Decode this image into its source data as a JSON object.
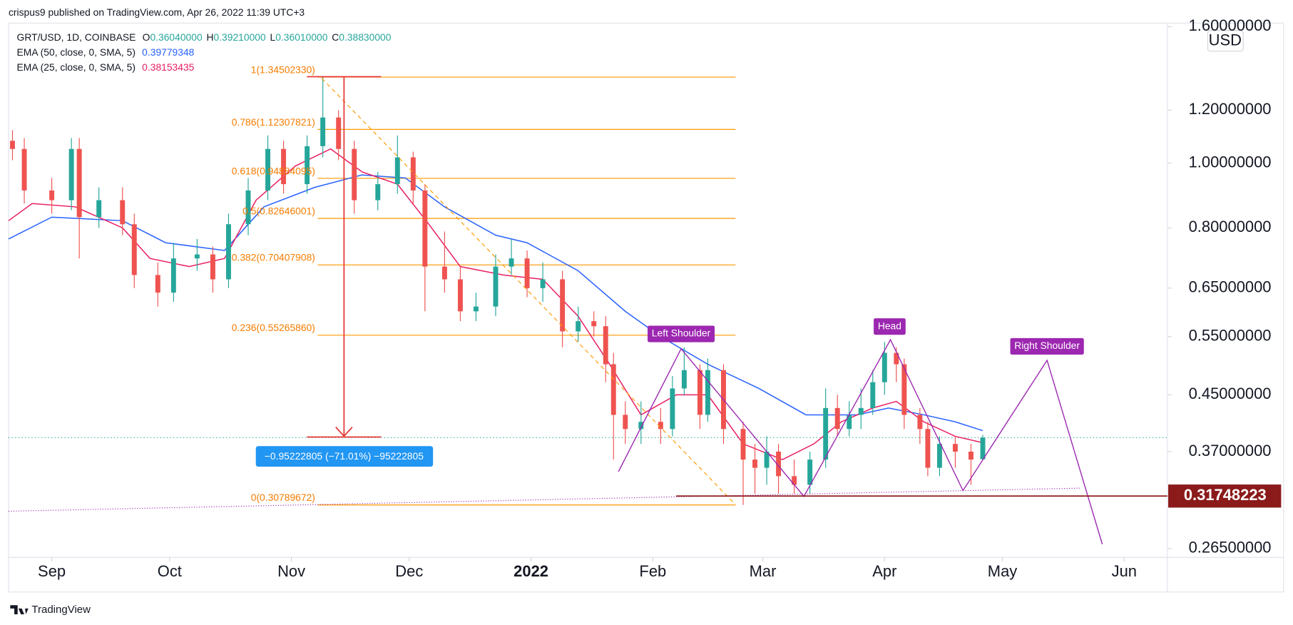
{
  "header": {
    "published": "crispus9 published on TradingView.com, Apr 26, 2022 11:39 UTC+3",
    "footer": "TradingView",
    "currency": "USD"
  },
  "chart_data": {
    "type": "candlestick",
    "log_scale": true,
    "legend": {
      "symbol": "GRT/USD, 1D, COINBASE",
      "ohlc": [
        {
          "key": "O",
          "value": "0.36040000"
        },
        {
          "key": "H",
          "value": "0.39210000"
        },
        {
          "key": "L",
          "value": "0.36010000"
        },
        {
          "key": "C",
          "value": "0.38830000"
        }
      ]
    },
    "up_color": "#26a69a",
    "down_color": "#ef5350",
    "xlim": [
      -11,
      284
    ],
    "xticks": [
      {
        "value": 0,
        "label": "Sep"
      },
      {
        "value": 30,
        "label": "Oct"
      },
      {
        "value": 61,
        "label": "Nov"
      },
      {
        "value": 91,
        "label": "Dec"
      },
      {
        "value": 122,
        "label": "2022"
      },
      {
        "value": 153,
        "label": "Feb"
      },
      {
        "value": 181,
        "label": "Mar"
      },
      {
        "value": 212,
        "label": "Apr"
      },
      {
        "value": 242,
        "label": "May"
      },
      {
        "value": 273,
        "label": "Jun"
      }
    ],
    "ylim": [
      0.257,
      1.62
    ],
    "yticks": [
      {
        "value": 1.6,
        "label": "1.60000000"
      },
      {
        "value": 1.2,
        "label": "1.20000000"
      },
      {
        "value": 1,
        "label": "1.00000000"
      },
      {
        "value": 0.8,
        "label": "0.80000000"
      },
      {
        "value": 0.65,
        "label": "0.65000000"
      },
      {
        "value": 0.55,
        "label": "0.55000000"
      },
      {
        "value": 0.45,
        "label": "0.45000000"
      },
      {
        "value": 0.37,
        "label": "0.37000000"
      },
      {
        "value": 0.265,
        "label": "0.26500000"
      }
    ],
    "candles": {
      "x": [
        -10,
        -7,
        0,
        5,
        7,
        12,
        18,
        21,
        27,
        31,
        37,
        41,
        45,
        50,
        55,
        59,
        65,
        69,
        73,
        77,
        83,
        88,
        92,
        95,
        100,
        104,
        108,
        113,
        117,
        121,
        125,
        130,
        134,
        138,
        141,
        143,
        146,
        150,
        155,
        158,
        161,
        165,
        167,
        171,
        176,
        179,
        182,
        185,
        189,
        193,
        197,
        200,
        203,
        206,
        209,
        212,
        215,
        217,
        221,
        223,
        226,
        230,
        234,
        237
      ],
      "open": [
        1.08,
        1.05,
        0.91,
        0.88,
        1.05,
        0.83,
        0.88,
        0.81,
        0.68,
        0.64,
        0.72,
        0.73,
        0.67,
        0.81,
        0.91,
        1.05,
        0.93,
        1.06,
        1.17,
        1.05,
        0.88,
        0.93,
        1.02,
        0.91,
        0.7,
        0.67,
        0.6,
        0.61,
        0.7,
        0.72,
        0.65,
        0.67,
        0.56,
        0.58,
        0.57,
        0.5,
        0.42,
        0.4,
        0.41,
        0.4,
        0.46,
        0.49,
        0.42,
        0.49,
        0.4,
        0.36,
        0.35,
        0.37,
        0.34,
        0.33,
        0.36,
        0.43,
        0.4,
        0.42,
        0.43,
        0.47,
        0.52,
        0.5,
        0.42,
        0.4,
        0.35,
        0.38,
        0.37,
        0.3604
      ],
      "high": [
        1.12,
        1.09,
        0.95,
        1.09,
        1.09,
        0.92,
        0.92,
        0.84,
        0.71,
        0.76,
        0.77,
        0.75,
        0.84,
        0.95,
        1.1,
        1.08,
        1.1,
        1.345,
        1.2,
        1.08,
        0.97,
        1.1,
        1.04,
        0.93,
        0.79,
        0.7,
        0.64,
        0.73,
        0.77,
        0.74,
        0.71,
        0.69,
        0.61,
        0.6,
        0.59,
        0.52,
        0.44,
        0.44,
        0.43,
        0.48,
        0.53,
        0.5,
        0.51,
        0.5,
        0.41,
        0.38,
        0.39,
        0.38,
        0.36,
        0.37,
        0.46,
        0.45,
        0.44,
        0.46,
        0.49,
        0.54,
        0.53,
        0.51,
        0.43,
        0.41,
        0.39,
        0.39,
        0.38,
        0.3921
      ],
      "low": [
        1.01,
        0.87,
        0.84,
        0.85,
        0.72,
        0.8,
        0.78,
        0.65,
        0.61,
        0.62,
        0.69,
        0.64,
        0.65,
        0.78,
        0.88,
        0.9,
        0.9,
        1.02,
        1.01,
        0.84,
        0.85,
        0.9,
        0.87,
        0.6,
        0.64,
        0.58,
        0.58,
        0.59,
        0.68,
        0.63,
        0.62,
        0.53,
        0.54,
        0.55,
        0.47,
        0.36,
        0.38,
        0.38,
        0.38,
        0.39,
        0.45,
        0.4,
        0.41,
        0.38,
        0.3079,
        0.32,
        0.33,
        0.32,
        0.32,
        0.32,
        0.35,
        0.39,
        0.39,
        0.4,
        0.42,
        0.45,
        0.47,
        0.4,
        0.38,
        0.34,
        0.34,
        0.35,
        0.33,
        0.3601
      ],
      "close": [
        1.05,
        0.91,
        0.88,
        1.05,
        0.83,
        0.88,
        0.81,
        0.68,
        0.64,
        0.72,
        0.73,
        0.67,
        0.81,
        0.91,
        1.05,
        0.93,
        1.06,
        1.17,
        1.05,
        0.88,
        0.93,
        1.02,
        0.91,
        0.7,
        0.67,
        0.6,
        0.61,
        0.7,
        0.72,
        0.65,
        0.67,
        0.56,
        0.58,
        0.57,
        0.5,
        0.42,
        0.4,
        0.41,
        0.4,
        0.46,
        0.49,
        0.42,
        0.49,
        0.4,
        0.36,
        0.35,
        0.37,
        0.34,
        0.33,
        0.36,
        0.43,
        0.4,
        0.42,
        0.43,
        0.47,
        0.52,
        0.5,
        0.42,
        0.4,
        0.35,
        0.38,
        0.37,
        0.36,
        0.3883
      ]
    },
    "series": [
      {
        "name": "EMA (50, close, 0, SMA, 5)",
        "color": "#2962ff",
        "legend_value": "0.39779348",
        "x": [
          -11,
          0,
          18,
          29,
          44,
          54,
          67,
          79,
          90,
          100,
          113,
          121,
          134,
          146,
          155,
          167,
          180,
          192,
          205,
          213,
          222,
          230,
          237
        ],
        "values": [
          0.77,
          0.83,
          0.82,
          0.76,
          0.74,
          0.86,
          0.92,
          0.96,
          0.95,
          0.86,
          0.78,
          0.76,
          0.69,
          0.6,
          0.55,
          0.5,
          0.46,
          0.42,
          0.42,
          0.43,
          0.42,
          0.41,
          0.39779348
        ]
      },
      {
        "name": "EMA (25, close, 0, SMA, 5)",
        "color": "#e91e63",
        "legend_value": "0.38153435",
        "x": [
          -11,
          -5,
          6,
          18,
          25,
          35,
          44,
          52,
          62,
          71,
          79,
          88,
          96,
          104,
          115,
          125,
          134,
          142,
          150,
          159,
          167,
          176,
          186,
          194,
          201,
          209,
          215,
          222,
          230,
          237
        ],
        "values": [
          0.82,
          0.87,
          0.86,
          0.8,
          0.72,
          0.7,
          0.72,
          0.88,
          0.99,
          1.05,
          0.97,
          0.93,
          0.81,
          0.7,
          0.68,
          0.67,
          0.59,
          0.5,
          0.42,
          0.45,
          0.45,
          0.38,
          0.36,
          0.38,
          0.41,
          0.43,
          0.44,
          0.41,
          0.39,
          0.38153435
        ]
      }
    ],
    "fib_levels": [
      {
        "label": "1(1.34502330)",
        "value": 1.3450233
      },
      {
        "label": "0.786(1.12307821)",
        "value": 1.12307821
      },
      {
        "label": "0.618(0.94884095)",
        "value": 0.94884095
      },
      {
        "label": "0.5(0.82646001)",
        "value": 0.82646001
      },
      {
        "label": "0.382(0.70407908)",
        "value": 0.70407908
      },
      {
        "label": "0.236(0.55265860)",
        "value": 0.5526586
      },
      {
        "label": "0(0.30789672)",
        "value": 0.30789672
      }
    ],
    "price_line": {
      "value": 0.31748223,
      "label": "0.31748223"
    },
    "measure_label": "−0.95222805 (−71.01%) −95222805",
    "annotations": [
      "Left Shoulder",
      "Head",
      "Right Shoulder"
    ]
  }
}
